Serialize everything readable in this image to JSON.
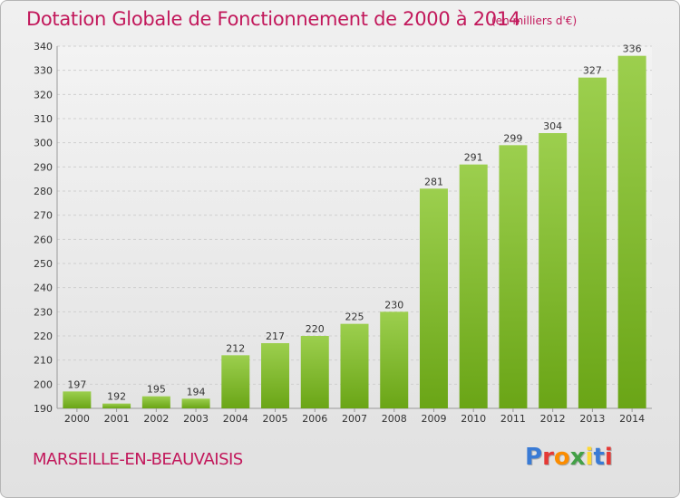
{
  "header": {
    "title": "Dotation Globale de Fonctionnement de 2000 à 2014",
    "unit": "(en milliers d'€)"
  },
  "footer": {
    "commune": "MARSEILLE-EN-BEAUVAISIS",
    "logo_text": "Proxiti"
  },
  "colors": {
    "title": "#c2185b",
    "bar_light": "#9ccf4e",
    "bar_dark": "#6aa516",
    "logo_letters": [
      "#3a7bd5",
      "#e53935",
      "#fb8c00",
      "#43a047",
      "#fdd835",
      "#3a7bd5",
      "#e53935"
    ]
  },
  "chart_data": {
    "type": "bar",
    "title": "Dotation Globale de Fonctionnement de 2000 à 2014",
    "ylabel": "(en milliers d'€)",
    "xlabel": "",
    "categories": [
      "2000",
      "2001",
      "2002",
      "2003",
      "2004",
      "2005",
      "2006",
      "2007",
      "2008",
      "2009",
      "2010",
      "2011",
      "2012",
      "2013",
      "2014"
    ],
    "values": [
      197,
      192,
      195,
      194,
      212,
      217,
      220,
      225,
      230,
      281,
      291,
      299,
      304,
      327,
      336
    ],
    "ylim": [
      190,
      340
    ],
    "yticks": [
      190,
      200,
      210,
      220,
      230,
      240,
      250,
      260,
      270,
      280,
      290,
      300,
      310,
      320,
      330,
      340
    ],
    "grid": true,
    "legend": "none"
  }
}
